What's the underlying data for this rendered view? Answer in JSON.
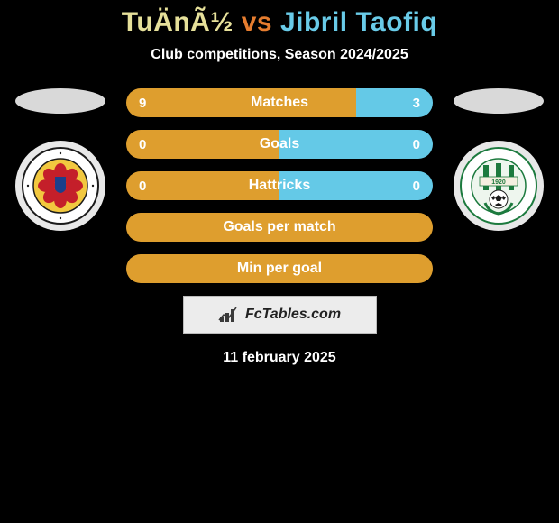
{
  "title": {
    "player1": "TuÄnÃ½",
    "vs": "vs",
    "player2": "Jibril Taofiq"
  },
  "subtitle": "Club competitions, Season 2024/2025",
  "colors": {
    "p1_bar": "#de9e2e",
    "p2_bar": "#64c9e7",
    "p1_title": "#e6e09a",
    "p2_title": "#69cbe8",
    "vs_title": "#e67d2f"
  },
  "bars": [
    {
      "label": "Matches",
      "left": "9",
      "right": "3",
      "left_pct": 75,
      "right_pct": 25
    },
    {
      "label": "Goals",
      "left": "0",
      "right": "0",
      "left_pct": 50,
      "right_pct": 50
    },
    {
      "label": "Hattricks",
      "left": "0",
      "right": "0",
      "left_pct": 50,
      "right_pct": 50
    },
    {
      "label": "Goals per match",
      "left": "",
      "right": "",
      "left_pct": 100,
      "right_pct": 0
    },
    {
      "label": "Min per goal",
      "left": "",
      "right": "",
      "left_pct": 100,
      "right_pct": 0
    }
  ],
  "brand": "FcTables.com",
  "date": "11 february 2025",
  "left_badge": {
    "ring_text": "MFK RUŽOMBEROK"
  },
  "right_badge": {
    "ring_text": "MFK SKALICA",
    "year": "1920"
  }
}
